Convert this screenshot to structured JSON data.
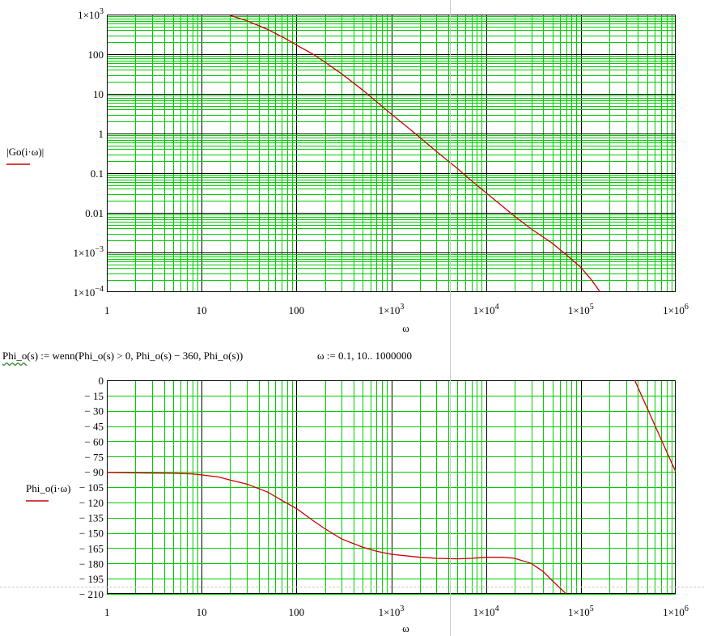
{
  "colors": {
    "major_grid": "#000000",
    "minor_grid": "#00cc00",
    "trace": "#cc0000",
    "cursor": "#c8c8c8"
  },
  "formula_text": {
    "func_name": "Phi_o",
    "func_rest": "(s) := wenn(Phi_o(s) > 0, Phi_o(s) − 360, Phi_o(s))",
    "range_def": "ω := 0.1, 10.. 1000000"
  },
  "chart_data": [
    {
      "type": "line",
      "title": "",
      "ylabel": "|Go(i·ω)|",
      "xlabel": "ω",
      "x_scale": "log",
      "y_scale": "log",
      "xlim": [
        1,
        1000000
      ],
      "ylim": [
        0.0001,
        1000
      ],
      "grid": true,
      "x_ticks": [
        {
          "value": 1,
          "base": "1",
          "exp": ""
        },
        {
          "value": 10,
          "base": "10",
          "exp": ""
        },
        {
          "value": 100,
          "base": "100",
          "exp": ""
        },
        {
          "value": 1000,
          "base": "1×10",
          "exp": "3"
        },
        {
          "value": 10000,
          "base": "1×10",
          "exp": "4"
        },
        {
          "value": 100000,
          "base": "1×10",
          "exp": "5"
        },
        {
          "value": 1000000,
          "base": "1×10",
          "exp": "6"
        }
      ],
      "y_ticks": [
        {
          "value": 1000,
          "base": "1×10",
          "exp": "3"
        },
        {
          "value": 100,
          "base": "100",
          "exp": ""
        },
        {
          "value": 10,
          "base": "10",
          "exp": ""
        },
        {
          "value": 1,
          "base": "1",
          "exp": ""
        },
        {
          "value": 0.1,
          "base": "0.1",
          "exp": ""
        },
        {
          "value": 0.01,
          "base": "0.01",
          "exp": ""
        },
        {
          "value": 0.001,
          "base": "1×10",
          "exp": "−3"
        },
        {
          "value": 0.0001,
          "base": "1×10",
          "exp": "−4"
        }
      ],
      "series": [
        {
          "x": [
            20,
            30,
            50,
            80,
            100,
            150,
            200,
            300,
            500,
            700,
            1000,
            2000,
            3000,
            5000,
            7000,
            10000,
            20000,
            30000,
            50000,
            70000,
            100000,
            130000,
            160000
          ],
          "y": [
            950,
            700,
            420,
            235,
            170,
            100,
            63,
            32,
            12.5,
            6.3,
            3.1,
            0.8,
            0.35,
            0.13,
            0.065,
            0.032,
            0.0082,
            0.0039,
            0.0017,
            0.00088,
            0.00042,
            0.0002,
            0.0001
          ]
        }
      ]
    },
    {
      "type": "line",
      "title": "",
      "ylabel": "Phi_o(i·ω)",
      "xlabel": "ω",
      "x_scale": "log",
      "y_scale": "linear",
      "xlim": [
        1,
        1000000
      ],
      "ylim": [
        -210,
        0
      ],
      "grid": true,
      "x_ticks": [
        {
          "value": 1,
          "base": "1",
          "exp": ""
        },
        {
          "value": 10,
          "base": "10",
          "exp": ""
        },
        {
          "value": 100,
          "base": "100",
          "exp": ""
        },
        {
          "value": 1000,
          "base": "1×10",
          "exp": "3"
        },
        {
          "value": 10000,
          "base": "1×10",
          "exp": "4"
        },
        {
          "value": 100000,
          "base": "1×10",
          "exp": "5"
        },
        {
          "value": 1000000,
          "base": "1×10",
          "exp": "6"
        }
      ],
      "y_ticks": [
        0,
        -15,
        -30,
        -45,
        -60,
        -75,
        -90,
        -105,
        -120,
        -135,
        -150,
        -165,
        -180,
        -195,
        -210
      ],
      "series": [
        {
          "segment": 1,
          "x": [
            1,
            2,
            5,
            8,
            10,
            15,
            20,
            30,
            50,
            70,
            100,
            150,
            200,
            300,
            500,
            700,
            1000,
            2000,
            3000,
            5000,
            7000,
            10000,
            15000,
            20000,
            30000,
            40000,
            50000,
            60000,
            70000
          ],
          "y": [
            -90.5,
            -91,
            -91.5,
            -92,
            -93,
            -95,
            -98,
            -102,
            -110,
            -118,
            -126,
            -138,
            -146,
            -156,
            -164,
            -168,
            -171,
            -174,
            -175,
            -175.5,
            -175,
            -174,
            -174,
            -175,
            -180,
            -188,
            -197,
            -204,
            -210
          ]
        },
        {
          "segment": 2,
          "x": [
            370000,
            1000000
          ],
          "y": [
            0,
            -90
          ]
        }
      ]
    }
  ]
}
